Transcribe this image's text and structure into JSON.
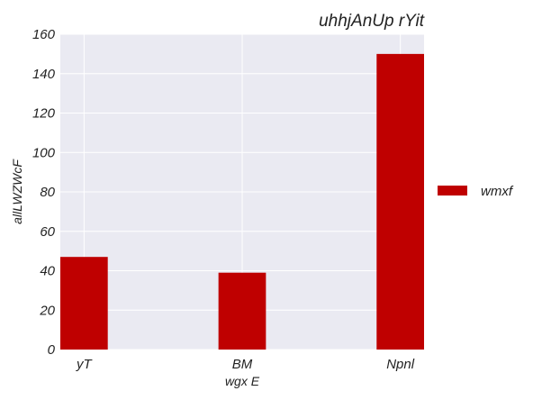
{
  "chart_data": {
    "type": "bar",
    "title": "uhhjAnUp rYit",
    "xlabel": "wgx E",
    "ylabel": "allLWZWcF",
    "categories": [
      "yT",
      "BM",
      "Npnl"
    ],
    "series": [
      {
        "name": "wmxf",
        "values": [
          47,
          39,
          150
        ],
        "color": "#bf0000"
      }
    ],
    "ylim": [
      0,
      160
    ],
    "yticks": [
      0,
      20,
      40,
      60,
      80,
      100,
      120,
      140,
      160
    ],
    "grid": true,
    "legend_position": "right",
    "background_color": "#eaeaf2",
    "grid_color": "#ffffff"
  }
}
